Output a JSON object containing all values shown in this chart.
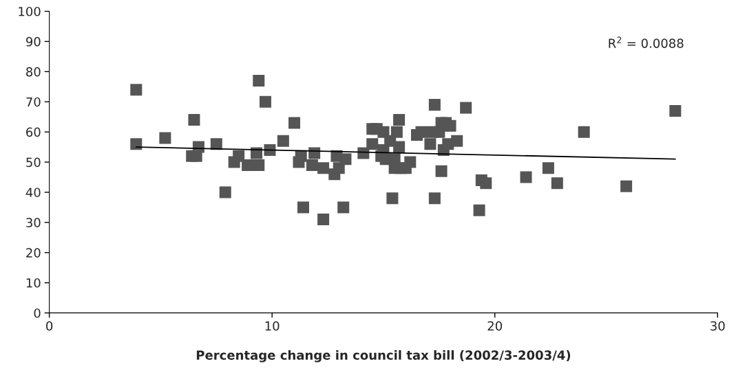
{
  "chart_data": {
    "type": "scatter",
    "xlabel": "Percentage change in council tax bill (2002/3-2003/4)",
    "xlim": [
      0,
      30
    ],
    "xticks": [
      0,
      10,
      20,
      30
    ],
    "ylim": [
      0,
      100
    ],
    "yticks": [
      0,
      10,
      20,
      30,
      40,
      50,
      60,
      70,
      80,
      90,
      100
    ],
    "grid": false,
    "legend": false,
    "marker": "square",
    "annotations": [
      "R$^{2}$ = 0.0088"
    ],
    "series": [
      {
        "color": "#555555",
        "x": [
          3.9,
          3.9,
          5.2,
          6.5,
          6.4,
          6.6,
          6.7,
          7.5,
          7.9,
          8.3,
          8.5,
          8.9,
          9.3,
          9.4,
          9.4,
          9.7,
          9.9,
          10.5,
          11.0,
          11.2,
          11.3,
          11.4,
          11.8,
          11.9,
          12.3,
          12.3,
          12.8,
          12.9,
          13.0,
          13.2,
          13.3,
          14.1,
          14.5,
          14.5,
          14.7,
          14.9,
          15.0,
          15.0,
          15.1,
          15.3,
          15.4,
          15.5,
          15.5,
          15.6,
          15.7,
          15.7,
          15.8,
          16.0,
          16.2,
          16.5,
          16.7,
          17.1,
          17.2,
          17.3,
          17.3,
          17.5,
          17.6,
          17.6,
          17.7,
          17.8,
          17.9,
          18.0,
          18.3,
          18.7,
          19.3,
          19.4,
          19.6,
          21.4,
          22.4,
          22.8,
          24.0,
          25.9,
          28.1
        ],
        "values": [
          74,
          56,
          58,
          64,
          52,
          52,
          55,
          56,
          40,
          50,
          52,
          49,
          53,
          77,
          49,
          70,
          54,
          57,
          63,
          50,
          52,
          35,
          49,
          53,
          48,
          31,
          46,
          52,
          48,
          35,
          51,
          53,
          61,
          56,
          61,
          52,
          60,
          54,
          51,
          57,
          38,
          48,
          51,
          60,
          64,
          55,
          48,
          48,
          50,
          59,
          60,
          56,
          60,
          69,
          38,
          60,
          63,
          47,
          54,
          63,
          56,
          62,
          57,
          68,
          34,
          44,
          43,
          45,
          48,
          43,
          60,
          42,
          67
        ]
      },
      {
        "type": "line",
        "color": "#000000",
        "line_style": "solid",
        "marker": "none",
        "x": [
          3.9,
          28.1
        ],
        "values": [
          55,
          51
        ]
      }
    ]
  }
}
